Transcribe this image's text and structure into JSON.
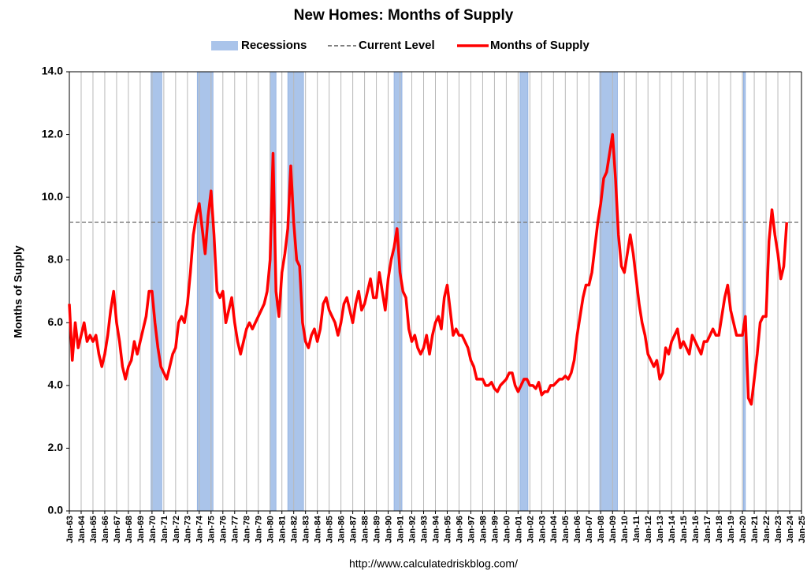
{
  "chart_data": {
    "type": "line",
    "title": "New Homes: Months of Supply",
    "ylabel": "Months of Supply",
    "footer": "http://www.calculatedriskblog.com/",
    "ylim": [
      0,
      14
    ],
    "yticks": [
      {
        "value": 0,
        "label": "0.0"
      },
      {
        "value": 2,
        "label": "2.0"
      },
      {
        "value": 4,
        "label": "4.0"
      },
      {
        "value": 6,
        "label": "6.0"
      },
      {
        "value": 8,
        "label": "8.0"
      },
      {
        "value": 10,
        "label": "10.0"
      },
      {
        "value": 12,
        "label": "12.0"
      },
      {
        "value": 14,
        "label": "14.0"
      }
    ],
    "xlim": [
      "1963-01",
      "2025-01"
    ],
    "grid": "x",
    "xticks": [
      {
        "value": "1963-01",
        "label": "Jan-63"
      },
      {
        "value": "1964-01",
        "label": "Jan-64"
      },
      {
        "value": "1965-01",
        "label": "Jan-65"
      },
      {
        "value": "1966-01",
        "label": "Jan-66"
      },
      {
        "value": "1967-01",
        "label": "Jan-67"
      },
      {
        "value": "1968-01",
        "label": "Jan-68"
      },
      {
        "value": "1969-01",
        "label": "Jan-69"
      },
      {
        "value": "1970-01",
        "label": "Jan-70"
      },
      {
        "value": "1971-01",
        "label": "Jan-71"
      },
      {
        "value": "1972-01",
        "label": "Jan-72"
      },
      {
        "value": "1973-01",
        "label": "Jan-73"
      },
      {
        "value": "1974-01",
        "label": "Jan-74"
      },
      {
        "value": "1975-01",
        "label": "Jan-75"
      },
      {
        "value": "1976-01",
        "label": "Jan-76"
      },
      {
        "value": "1977-01",
        "label": "Jan-77"
      },
      {
        "value": "1978-01",
        "label": "Jan-78"
      },
      {
        "value": "1979-01",
        "label": "Jan-79"
      },
      {
        "value": "1980-01",
        "label": "Jan-80"
      },
      {
        "value": "1981-01",
        "label": "Jan-81"
      },
      {
        "value": "1982-01",
        "label": "Jan-82"
      },
      {
        "value": "1983-01",
        "label": "Jan-83"
      },
      {
        "value": "1984-01",
        "label": "Jan-84"
      },
      {
        "value": "1985-01",
        "label": "Jan-85"
      },
      {
        "value": "1986-01",
        "label": "Jan-86"
      },
      {
        "value": "1987-01",
        "label": "Jan-87"
      },
      {
        "value": "1988-01",
        "label": "Jan-88"
      },
      {
        "value": "1989-01",
        "label": "Jan-89"
      },
      {
        "value": "1990-01",
        "label": "Jan-90"
      },
      {
        "value": "1991-01",
        "label": "Jan-91"
      },
      {
        "value": "1992-01",
        "label": "Jan-92"
      },
      {
        "value": "1993-01",
        "label": "Jan-93"
      },
      {
        "value": "1994-01",
        "label": "Jan-94"
      },
      {
        "value": "1995-01",
        "label": "Jan-95"
      },
      {
        "value": "1996-01",
        "label": "Jan-96"
      },
      {
        "value": "1997-01",
        "label": "Jan-97"
      },
      {
        "value": "1998-01",
        "label": "Jan-98"
      },
      {
        "value": "1999-01",
        "label": "Jan-99"
      },
      {
        "value": "2000-01",
        "label": "Jan-00"
      },
      {
        "value": "2001-01",
        "label": "Jan-01"
      },
      {
        "value": "2002-01",
        "label": "Jan-02"
      },
      {
        "value": "2003-01",
        "label": "Jan-03"
      },
      {
        "value": "2004-01",
        "label": "Jan-04"
      },
      {
        "value": "2005-01",
        "label": "Jan-05"
      },
      {
        "value": "2006-01",
        "label": "Jan-06"
      },
      {
        "value": "2007-01",
        "label": "Jan-07"
      },
      {
        "value": "2008-01",
        "label": "Jan-08"
      },
      {
        "value": "2009-01",
        "label": "Jan-09"
      },
      {
        "value": "2010-01",
        "label": "Jan-10"
      },
      {
        "value": "2011-01",
        "label": "Jan-11"
      },
      {
        "value": "2012-01",
        "label": "Jan-12"
      },
      {
        "value": "2013-01",
        "label": "Jan-13"
      },
      {
        "value": "2014-01",
        "label": "Jan-14"
      },
      {
        "value": "2015-01",
        "label": "Jan-15"
      },
      {
        "value": "2016-01",
        "label": "Jan-16"
      },
      {
        "value": "2017-01",
        "label": "Jan-17"
      },
      {
        "value": "2018-01",
        "label": "Jan-18"
      },
      {
        "value": "2019-01",
        "label": "Jan-19"
      },
      {
        "value": "2020-01",
        "label": "Jan-20"
      },
      {
        "value": "2021-01",
        "label": "Jan-21"
      },
      {
        "value": "2022-01",
        "label": "Jan-22"
      },
      {
        "value": "2023-01",
        "label": "Jan-23"
      },
      {
        "value": "2024-01",
        "label": "Jan-24"
      },
      {
        "value": "2025-01",
        "label": "Jan-25"
      }
    ],
    "recessions": {
      "name": "Recessions",
      "color": "#aac4ea",
      "periods": [
        {
          "start": "1969-12",
          "end": "1970-11"
        },
        {
          "start": "1973-11",
          "end": "1975-03"
        },
        {
          "start": "1980-01",
          "end": "1980-07"
        },
        {
          "start": "1981-07",
          "end": "1982-11"
        },
        {
          "start": "1990-07",
          "end": "1991-03"
        },
        {
          "start": "2001-03",
          "end": "2001-11"
        },
        {
          "start": "2007-12",
          "end": "2009-06"
        },
        {
          "start": "2020-02",
          "end": "2020-04"
        }
      ]
    },
    "reference_line": {
      "name": "Current Level",
      "value": 9.2,
      "color": "#808080"
    },
    "x": [
      "1963-01",
      "1963-04",
      "1963-07",
      "1963-10",
      "1964-01",
      "1964-04",
      "1964-07",
      "1964-10",
      "1965-01",
      "1965-04",
      "1965-07",
      "1965-10",
      "1966-01",
      "1966-04",
      "1966-07",
      "1966-10",
      "1967-01",
      "1967-04",
      "1967-07",
      "1967-10",
      "1968-01",
      "1968-04",
      "1968-07",
      "1968-10",
      "1969-01",
      "1969-04",
      "1969-07",
      "1969-10",
      "1970-01",
      "1970-04",
      "1970-07",
      "1970-10",
      "1971-01",
      "1971-04",
      "1971-07",
      "1971-10",
      "1972-01",
      "1972-04",
      "1972-07",
      "1972-10",
      "1973-01",
      "1973-04",
      "1973-07",
      "1973-10",
      "1974-01",
      "1974-04",
      "1974-07",
      "1974-10",
      "1975-01",
      "1975-04",
      "1975-07",
      "1975-10",
      "1976-01",
      "1976-04",
      "1976-07",
      "1976-10",
      "1977-01",
      "1977-04",
      "1977-07",
      "1977-10",
      "1978-01",
      "1978-04",
      "1978-07",
      "1978-10",
      "1979-01",
      "1979-04",
      "1979-07",
      "1979-10",
      "1980-01",
      "1980-04",
      "1980-07",
      "1980-10",
      "1981-01",
      "1981-04",
      "1981-07",
      "1981-10",
      "1982-01",
      "1982-04",
      "1982-07",
      "1982-10",
      "1983-01",
      "1983-04",
      "1983-07",
      "1983-10",
      "1984-01",
      "1984-04",
      "1984-07",
      "1984-10",
      "1985-01",
      "1985-04",
      "1985-07",
      "1985-10",
      "1986-01",
      "1986-04",
      "1986-07",
      "1986-10",
      "1987-01",
      "1987-04",
      "1987-07",
      "1987-10",
      "1988-01",
      "1988-04",
      "1988-07",
      "1988-10",
      "1989-01",
      "1989-04",
      "1989-07",
      "1989-10",
      "1990-01",
      "1990-04",
      "1990-07",
      "1990-10",
      "1991-01",
      "1991-04",
      "1991-07",
      "1991-10",
      "1992-01",
      "1992-04",
      "1992-07",
      "1992-10",
      "1993-01",
      "1993-04",
      "1993-07",
      "1993-10",
      "1994-01",
      "1994-04",
      "1994-07",
      "1994-10",
      "1995-01",
      "1995-04",
      "1995-07",
      "1995-10",
      "1996-01",
      "1996-04",
      "1996-07",
      "1996-10",
      "1997-01",
      "1997-04",
      "1997-07",
      "1997-10",
      "1998-01",
      "1998-04",
      "1998-07",
      "1998-10",
      "1999-01",
      "1999-04",
      "1999-07",
      "1999-10",
      "2000-01",
      "2000-04",
      "2000-07",
      "2000-10",
      "2001-01",
      "2001-04",
      "2001-07",
      "2001-10",
      "2002-01",
      "2002-04",
      "2002-07",
      "2002-10",
      "2003-01",
      "2003-04",
      "2003-07",
      "2003-10",
      "2004-01",
      "2004-04",
      "2004-07",
      "2004-10",
      "2005-01",
      "2005-04",
      "2005-07",
      "2005-10",
      "2006-01",
      "2006-04",
      "2006-07",
      "2006-10",
      "2007-01",
      "2007-04",
      "2007-07",
      "2007-10",
      "2008-01",
      "2008-04",
      "2008-07",
      "2008-10",
      "2009-01",
      "2009-04",
      "2009-07",
      "2009-10",
      "2010-01",
      "2010-04",
      "2010-07",
      "2010-10",
      "2011-01",
      "2011-04",
      "2011-07",
      "2011-10",
      "2012-01",
      "2012-04",
      "2012-07",
      "2012-10",
      "2013-01",
      "2013-04",
      "2013-07",
      "2013-10",
      "2014-01",
      "2014-04",
      "2014-07",
      "2014-10",
      "2015-01",
      "2015-04",
      "2015-07",
      "2015-10",
      "2016-01",
      "2016-04",
      "2016-07",
      "2016-10",
      "2017-01",
      "2017-04",
      "2017-07",
      "2017-10",
      "2018-01",
      "2018-04",
      "2018-07",
      "2018-10",
      "2019-01",
      "2019-04",
      "2019-07",
      "2019-10",
      "2020-01",
      "2020-04",
      "2020-07",
      "2020-10",
      "2021-01",
      "2021-04",
      "2021-07",
      "2021-10",
      "2022-01",
      "2022-04",
      "2022-07",
      "2022-10",
      "2023-01",
      "2023-04",
      "2023-07",
      "2023-10"
    ],
    "series": [
      {
        "name": "Months of Supply",
        "color": "#ff0000",
        "values": [
          6.6,
          4.8,
          6.0,
          5.2,
          5.6,
          6.0,
          5.4,
          5.6,
          5.4,
          5.6,
          5.0,
          4.6,
          5.0,
          5.6,
          6.4,
          7.0,
          6.0,
          5.4,
          4.6,
          4.2,
          4.6,
          4.8,
          5.4,
          5.0,
          5.4,
          5.8,
          6.2,
          7.0,
          7.0,
          6.0,
          5.2,
          4.6,
          4.4,
          4.2,
          4.6,
          5.0,
          5.2,
          6.0,
          6.2,
          6.0,
          6.6,
          7.6,
          8.8,
          9.4,
          9.8,
          9.0,
          8.2,
          9.4,
          10.2,
          8.8,
          7.0,
          6.8,
          7.0,
          6.0,
          6.4,
          6.8,
          6.0,
          5.4,
          5.0,
          5.4,
          5.8,
          6.0,
          5.8,
          6.0,
          6.2,
          6.4,
          6.6,
          7.0,
          8.0,
          11.4,
          7.0,
          6.2,
          7.6,
          8.2,
          9.0,
          11.0,
          9.2,
          8.0,
          7.8,
          6.0,
          5.4,
          5.2,
          5.6,
          5.8,
          5.4,
          5.8,
          6.6,
          6.8,
          6.4,
          6.2,
          6.0,
          5.6,
          6.0,
          6.6,
          6.8,
          6.4,
          6.0,
          6.6,
          7.0,
          6.4,
          6.6,
          7.0,
          7.4,
          6.8,
          6.8,
          7.6,
          7.0,
          6.4,
          7.4,
          8.0,
          8.4,
          9.0,
          7.6,
          7.0,
          6.8,
          5.8,
          5.4,
          5.6,
          5.2,
          5.0,
          5.2,
          5.6,
          5.0,
          5.6,
          6.0,
          6.2,
          5.8,
          6.8,
          7.2,
          6.4,
          5.6,
          5.8,
          5.6,
          5.6,
          5.4,
          5.2,
          4.8,
          4.6,
          4.2,
          4.2,
          4.2,
          4.0,
          4.0,
          4.1,
          3.9,
          3.8,
          4.0,
          4.1,
          4.2,
          4.4,
          4.4,
          4.0,
          3.8,
          4.0,
          4.2,
          4.2,
          4.0,
          4.0,
          3.9,
          4.1,
          3.7,
          3.8,
          3.8,
          4.0,
          4.0,
          4.1,
          4.2,
          4.2,
          4.3,
          4.2,
          4.4,
          4.8,
          5.6,
          6.2,
          6.8,
          7.2,
          7.2,
          7.6,
          8.4,
          9.2,
          9.8,
          10.6,
          10.8,
          11.4,
          12.0,
          10.6,
          8.8,
          7.8,
          7.6,
          8.2,
          8.8,
          8.2,
          7.4,
          6.6,
          6.0,
          5.6,
          5.0,
          4.8,
          4.6,
          4.8,
          4.2,
          4.4,
          5.2,
          5.0,
          5.4,
          5.6,
          5.8,
          5.2,
          5.4,
          5.2,
          5.0,
          5.6,
          5.4,
          5.2,
          5.0,
          5.4,
          5.4,
          5.6,
          5.8,
          5.6,
          5.6,
          6.2,
          6.8,
          7.2,
          6.4,
          6.0,
          5.6,
          5.6,
          5.6,
          6.2,
          3.6,
          3.4,
          4.2,
          5.0,
          6.0,
          6.2,
          6.2,
          8.6,
          9.6,
          8.8,
          8.2,
          7.4,
          7.8,
          9.2
        ]
      }
    ]
  }
}
